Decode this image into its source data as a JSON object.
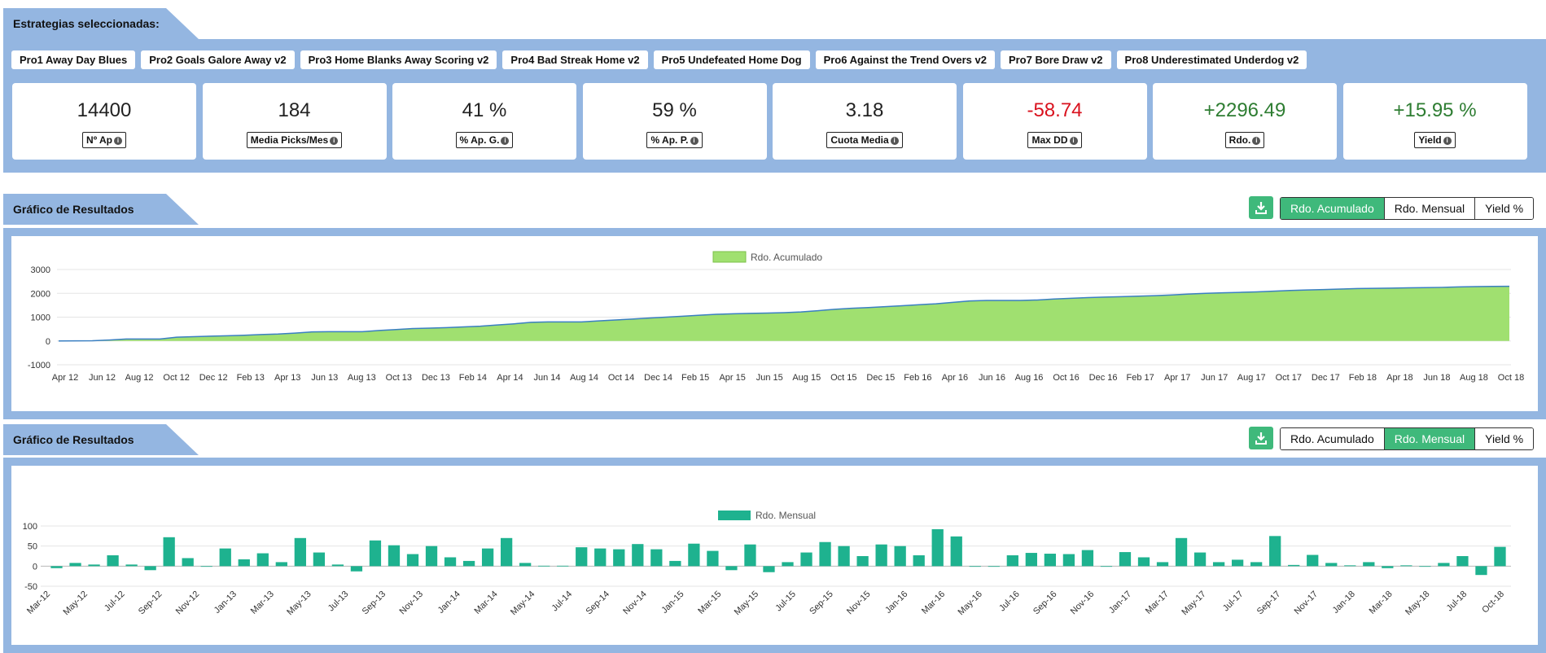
{
  "strategies_header": "Estrategias seleccionadas:",
  "strategies": [
    "Pro1 Away Day Blues",
    "Pro2 Goals Galore Away v2",
    "Pro3 Home Blanks Away Scoring v2",
    "Pro4 Bad Streak Home v2",
    "Pro5 Undefeated Home Dog",
    "Pro6 Against the Trend Overs v2",
    "Pro7 Bore Draw v2",
    "Pro8 Underestimated Underdog v2"
  ],
  "stats": [
    {
      "value": "14400",
      "label": "Nº Ap",
      "tone": "normal"
    },
    {
      "value": "184",
      "label": "Media Picks/Mes",
      "tone": "normal"
    },
    {
      "value": "41 %",
      "label": "% Ap. G.",
      "tone": "normal"
    },
    {
      "value": "59 %",
      "label": "% Ap. P.",
      "tone": "normal"
    },
    {
      "value": "3.18",
      "label": "Cuota Media",
      "tone": "normal"
    },
    {
      "value": "-58.74",
      "label": "Max DD",
      "tone": "neg"
    },
    {
      "value": "+2296.49",
      "label": "Rdo.",
      "tone": "pos"
    },
    {
      "value": "+15.95 %",
      "label": "Yield",
      "tone": "pos"
    }
  ],
  "section1": {
    "title": "Gráfico de Resultados",
    "buttons": [
      "Rdo. Acumulado",
      "Rdo. Mensual",
      "Yield %"
    ],
    "active": 0
  },
  "section2": {
    "title": "Gráfico de Resultados",
    "buttons": [
      "Rdo. Acumulado",
      "Rdo. Mensual",
      "Yield %"
    ],
    "active": 1
  },
  "colors": {
    "panel": "#94b6e1",
    "accent": "#3fb97b",
    "area_fill": "#a0e070",
    "area_line": "#3a7fc2",
    "bar": "#1eb28f",
    "neg": "#d9121e",
    "pos": "#2e7d32"
  },
  "chart_data": [
    {
      "type": "area",
      "legend": "Rdo. Acumulado",
      "ylim": [
        -1000,
        3000
      ],
      "yticks": [
        3000,
        2000,
        1000,
        0,
        -1000
      ],
      "x_ticks": [
        "Apr 12",
        "Jun 12",
        "Aug 12",
        "Oct 12",
        "Dec 12",
        "Feb 13",
        "Apr 13",
        "Jun 13",
        "Aug 13",
        "Oct 13",
        "Dec 13",
        "Feb 14",
        "Apr 14",
        "Jun 14",
        "Aug 14",
        "Oct 14",
        "Dec 14",
        "Feb 15",
        "Apr 15",
        "Jun 15",
        "Aug 15",
        "Oct 15",
        "Dec 15",
        "Feb 16",
        "Apr 16",
        "Jun 16",
        "Aug 16",
        "Oct 16",
        "Dec 16",
        "Feb 17",
        "Apr 17",
        "Jun 17",
        "Aug 17",
        "Oct 17",
        "Dec 17",
        "Feb 18",
        "Apr 18",
        "Jun 18",
        "Aug 18",
        "Oct 18"
      ],
      "values": [
        0,
        5,
        10,
        40,
        80,
        80,
        80,
        160,
        180,
        200,
        220,
        240,
        270,
        290,
        330,
        380,
        390,
        390,
        390,
        440,
        480,
        520,
        540,
        560,
        590,
        620,
        670,
        720,
        780,
        800,
        800,
        800,
        840,
        880,
        920,
        960,
        1000,
        1040,
        1080,
        1120,
        1140,
        1160,
        1170,
        1190,
        1220,
        1270,
        1330,
        1370,
        1400,
        1440,
        1480,
        1520,
        1560,
        1620,
        1680,
        1700,
        1700,
        1700,
        1720,
        1760,
        1790,
        1820,
        1840,
        1860,
        1880,
        1900,
        1930,
        1970,
        2000,
        2020,
        2040,
        2060,
        2090,
        2120,
        2140,
        2160,
        2180,
        2200,
        2210,
        2220,
        2230,
        2240,
        2250,
        2270,
        2280,
        2290,
        2296
      ]
    },
    {
      "type": "bar",
      "legend": "Rdo. Mensual",
      "ylim": [
        -50,
        100
      ],
      "yticks": [
        100,
        50,
        0,
        -50
      ],
      "x_ticks": [
        "Mar-12",
        "May-12",
        "Jul-12",
        "Sep-12",
        "Nov-12",
        "Jan-13",
        "Mar-13",
        "May-13",
        "Jul-13",
        "Sep-13",
        "Nov-13",
        "Jan-14",
        "Mar-14",
        "May-14",
        "Jul-14",
        "Sep-14",
        "Nov-14",
        "Jan-15",
        "Mar-15",
        "May-15",
        "Jul-15",
        "Sep-15",
        "Nov-15",
        "Jan-16",
        "Mar-16",
        "May-16",
        "Jul-16",
        "Sep-16",
        "Nov-16",
        "Jan-17",
        "Mar-17",
        "May-17",
        "Jul-17",
        "Sep-17",
        "Nov-17",
        "Jan-18",
        "Mar-18",
        "May-18",
        "Jul-18",
        "Oct-18"
      ],
      "values": [
        -5,
        8,
        4,
        27,
        4,
        -10,
        72,
        20,
        0,
        44,
        17,
        32,
        10,
        70,
        34,
        4,
        -13,
        64,
        52,
        30,
        50,
        22,
        13,
        44,
        70,
        8,
        1,
        1,
        47,
        44,
        42,
        55,
        42,
        13,
        56,
        38,
        -10,
        54,
        -15,
        10,
        34,
        60,
        50,
        25,
        54,
        50,
        27,
        92,
        74,
        0,
        0,
        27,
        33,
        31,
        30,
        40,
        0,
        35,
        22,
        10,
        70,
        34,
        10,
        16,
        10,
        75,
        3,
        28,
        8,
        2,
        10,
        -5,
        2,
        0,
        8,
        25,
        -22,
        48
      ]
    }
  ]
}
